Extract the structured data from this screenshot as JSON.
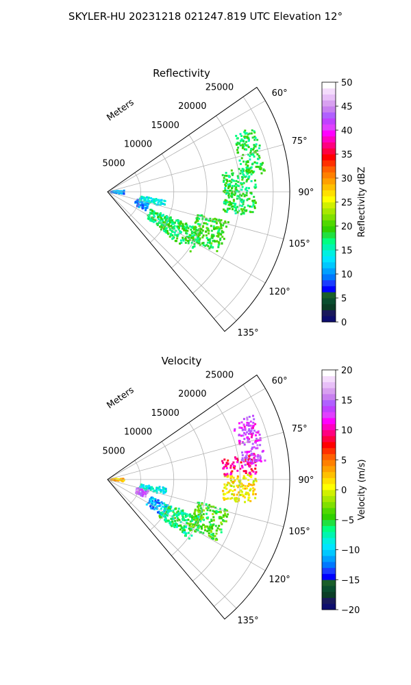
{
  "figure": {
    "title": "SKYLER-HU  20231218  021247.819 UTC Elevation 12°"
  },
  "chart_data": [
    {
      "type": "polar-sector-heatmap",
      "title": "Reflectivity",
      "r_axis_label": "Meters",
      "r_ticks": [
        5000,
        10000,
        15000,
        20000,
        25000
      ],
      "r_tick_labels": [
        "5000",
        "10000",
        "15000",
        "20000",
        "25000"
      ],
      "r_lim": [
        0,
        27500
      ],
      "theta_range_deg": [
        55,
        140
      ],
      "theta_ticks_deg": [
        60,
        75,
        90,
        105,
        120,
        135
      ],
      "theta_tick_labels": [
        "60°",
        "75°",
        "90°",
        "105°",
        "120°",
        "135°"
      ],
      "grid": true,
      "colorbar": {
        "label": "Reflectivity dBZ",
        "range": [
          0,
          50
        ],
        "ticks": [
          0,
          5,
          10,
          15,
          20,
          25,
          30,
          35,
          40,
          45,
          50
        ],
        "tick_labels": [
          "0",
          "5",
          "10",
          "15",
          "20",
          "25",
          "30",
          "35",
          "40",
          "45",
          "50"
        ],
        "colors": [
          "#0d0d6e",
          "#19195b",
          "#0b3d26",
          "#0a4d2f",
          "#1a5e2a",
          "#0000ff",
          "#1a3cff",
          "#0078ff",
          "#00a0ff",
          "#00c8ff",
          "#00e5ff",
          "#00f0e0",
          "#00f5b0",
          "#00ff80",
          "#20e040",
          "#30d000",
          "#50d800",
          "#80e000",
          "#a8e800",
          "#d0f000",
          "#ffff00",
          "#ffe000",
          "#ffc000",
          "#ffa000",
          "#ff8000",
          "#ff6000",
          "#ff3000",
          "#ff0000",
          "#ff0040",
          "#ff0080",
          "#ff00c0",
          "#ff00ff",
          "#e040ff",
          "#c040ff",
          "#b060ff",
          "#c880f0",
          "#d8a0f0",
          "#e8c0f8",
          "#f4dcfc",
          "#ffffff"
        ]
      },
      "regions": [
        {
          "r": [
            500,
            2500
          ],
          "theta": [
            85,
            98
          ],
          "value": 10
        },
        {
          "r": [
            4500,
            6500
          ],
          "theta": [
            105,
            116
          ],
          "value": 10
        },
        {
          "r": [
            7000,
            10500
          ],
          "theta": [
            112,
            124
          ],
          "value": 17
        },
        {
          "r": [
            9500,
            15500
          ],
          "theta": [
            112,
            126
          ],
          "value": 18
        },
        {
          "r": [
            14000,
            19000
          ],
          "theta": [
            104,
            120
          ],
          "value": 19
        },
        {
          "r": [
            17500,
            22500
          ],
          "theta": [
            80,
            100
          ],
          "value": 18
        },
        {
          "r": [
            20500,
            24000
          ],
          "theta": [
            66,
            84
          ],
          "value": 18
        },
        {
          "r": [
            5000,
            9000
          ],
          "theta": [
            98,
            105
          ],
          "value": 14
        }
      ]
    },
    {
      "type": "polar-sector-heatmap",
      "title": "Velocity",
      "r_axis_label": "Meters",
      "r_ticks": [
        5000,
        10000,
        15000,
        20000,
        25000
      ],
      "r_tick_labels": [
        "5000",
        "10000",
        "15000",
        "20000",
        "25000"
      ],
      "r_lim": [
        0,
        27500
      ],
      "theta_range_deg": [
        55,
        140
      ],
      "theta_ticks_deg": [
        60,
        75,
        90,
        105,
        120,
        135
      ],
      "theta_tick_labels": [
        "60°",
        "75°",
        "90°",
        "105°",
        "120°",
        "135°"
      ],
      "grid": true,
      "colorbar": {
        "label": "Velocity (m/s)",
        "range": [
          -20,
          20
        ],
        "ticks": [
          -20,
          -15,
          -10,
          -5,
          0,
          5,
          10,
          15,
          20
        ],
        "tick_labels": [
          "−20",
          "−15",
          "−10",
          "−5",
          "0",
          "5",
          "10",
          "15",
          "20"
        ],
        "colors": [
          "#0d0d6e",
          "#19195b",
          "#0b3d26",
          "#0a4d2f",
          "#1a5e2a",
          "#0000ff",
          "#1a3cff",
          "#0078ff",
          "#00a0ff",
          "#00c8ff",
          "#00e5ff",
          "#00f0e0",
          "#00f5b0",
          "#00ff80",
          "#20e040",
          "#30d000",
          "#50d800",
          "#80e000",
          "#a8e800",
          "#d0f000",
          "#ffff00",
          "#ffe000",
          "#ffc000",
          "#ffa000",
          "#ff8000",
          "#ff6000",
          "#ff3000",
          "#ff0000",
          "#ff0040",
          "#ff0080",
          "#ff00c0",
          "#ff00ff",
          "#e040ff",
          "#c040ff",
          "#b060ff",
          "#c880f0",
          "#d8a0f0",
          "#e8c0f8",
          "#f4dcfc",
          "#ffffff"
        ]
      },
      "regions": [
        {
          "r": [
            500,
            2500
          ],
          "theta": [
            85,
            98
          ],
          "value": 3
        },
        {
          "r": [
            4500,
            6500
          ],
          "theta": [
            105,
            116
          ],
          "value": 14
        },
        {
          "r": [
            7000,
            10500
          ],
          "theta": [
            112,
            124
          ],
          "value": -11
        },
        {
          "r": [
            9500,
            15500
          ],
          "theta": [
            112,
            126
          ],
          "value": -6
        },
        {
          "r": [
            14000,
            19000
          ],
          "theta": [
            104,
            120
          ],
          "value": -4
        },
        {
          "r": [
            17500,
            22500
          ],
          "theta": [
            88,
            100
          ],
          "value": 1
        },
        {
          "r": [
            17500,
            22500
          ],
          "theta": [
            80,
            88
          ],
          "value": 9
        },
        {
          "r": [
            20500,
            24000
          ],
          "theta": [
            66,
            84
          ],
          "value": 13
        },
        {
          "r": [
            5000,
            9000
          ],
          "theta": [
            98,
            105
          ],
          "value": -9
        }
      ]
    }
  ]
}
